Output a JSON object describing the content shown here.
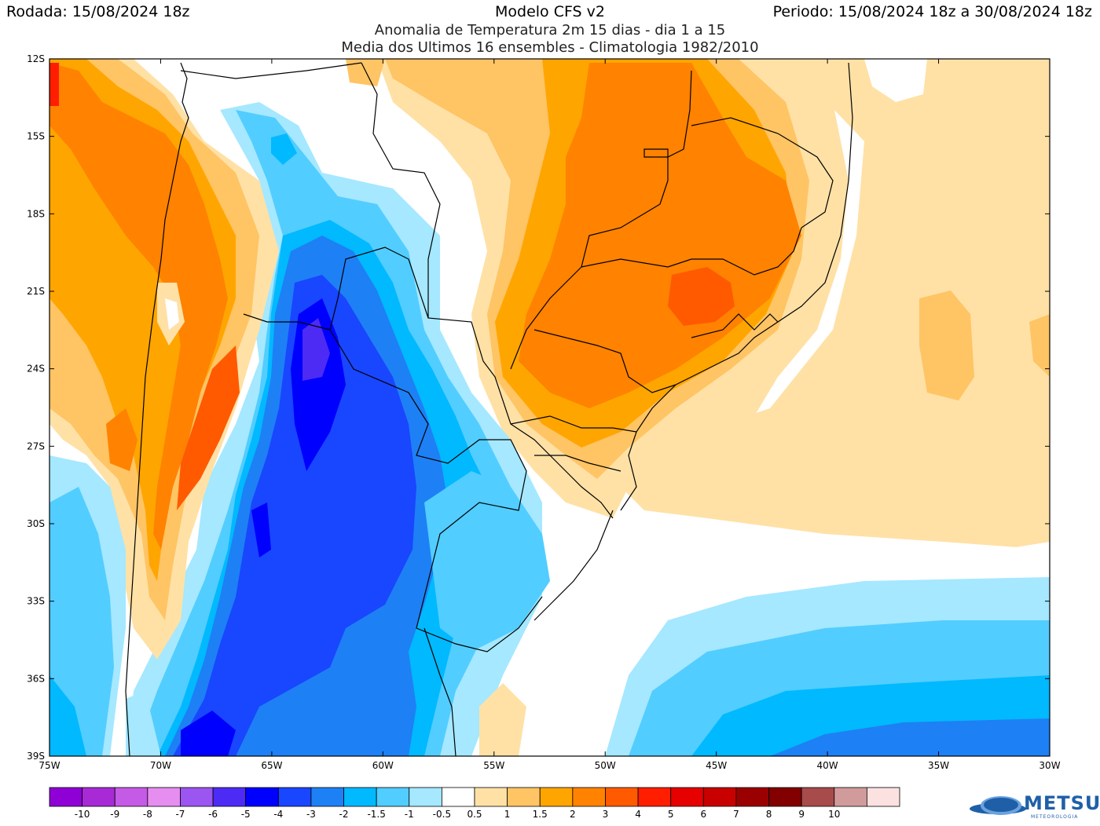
{
  "header": {
    "run": "Rodada: 15/08/2024 18z",
    "model": "Modelo CFS v2",
    "period": "Periodo: 15/08/2024 18z a 30/08/2024 18z",
    "subtitle1": "Anomalia de Temperatura 2m 15 dias - dia 1 a 15",
    "subtitle2": "Media dos Ultimos 16 ensembles - Climatologia 1982/2010"
  },
  "map": {
    "lon_range": [
      -75,
      -30
    ],
    "lat_range": [
      -39,
      -12
    ],
    "lat_labels": [
      "12S",
      "15S",
      "18S",
      "21S",
      "24S",
      "27S",
      "30S",
      "33S",
      "36S",
      "39S"
    ],
    "lon_labels": [
      "75W",
      "70W",
      "65W",
      "60W",
      "55W",
      "50W",
      "45W",
      "40W",
      "35W",
      "30W"
    ]
  },
  "colorbar": {
    "colors": [
      "#8f00d6",
      "#a82ad6",
      "#c45ae6",
      "#e68ef0",
      "#9b55f0",
      "#4d2bf5",
      "#0000ff",
      "#1946ff",
      "#1e80f5",
      "#00b9ff",
      "#52cdff",
      "#a5e8ff",
      "#ffffff",
      "#ffe1a6",
      "#ffc464",
      "#ffa500",
      "#ff8200",
      "#ff5a00",
      "#ff1e00",
      "#e60000",
      "#c80000",
      "#9b0000",
      "#820000",
      "#a84b4b",
      "#d29b9b",
      "#fce1e1"
    ],
    "labels": [
      "-10",
      "-9",
      "-8",
      "-7",
      "-6",
      "-5",
      "-4",
      "-3",
      "-2",
      "-1.5",
      "-1",
      "-0.5",
      "0.5",
      "1",
      "1.5",
      "2",
      "3",
      "4",
      "5",
      "6",
      "7",
      "8",
      "9",
      "10"
    ]
  },
  "logo": {
    "name": "METSUL",
    "tagline": "METEOROLOGIA"
  }
}
